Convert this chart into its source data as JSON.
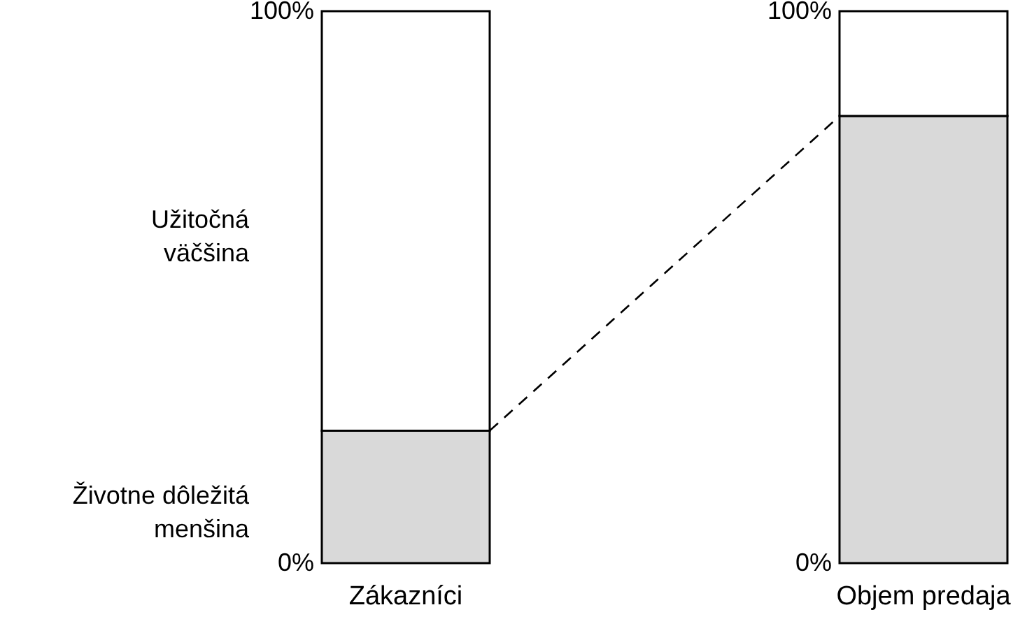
{
  "chart_data": {
    "type": "bar",
    "stacked": true,
    "categories": [
      "Zákazníci",
      "Objem predaja"
    ],
    "series": [
      {
        "name": "Životne dôležitá menšina",
        "color": "#d9d9d9",
        "values": [
          24,
          81
        ]
      },
      {
        "name": "Užitočná väčšina",
        "color": "#ffffff",
        "values": [
          76,
          19
        ]
      }
    ],
    "ylim": [
      0,
      100
    ],
    "yticks": [
      {
        "value": 0,
        "label": "0%"
      },
      {
        "value": 100,
        "label": "100%"
      }
    ],
    "y2lim": [
      0,
      100
    ],
    "y2ticks": [
      {
        "value": 0,
        "label": "0%"
      },
      {
        "value": 100,
        "label": "100%"
      }
    ],
    "grid": false
  }
}
